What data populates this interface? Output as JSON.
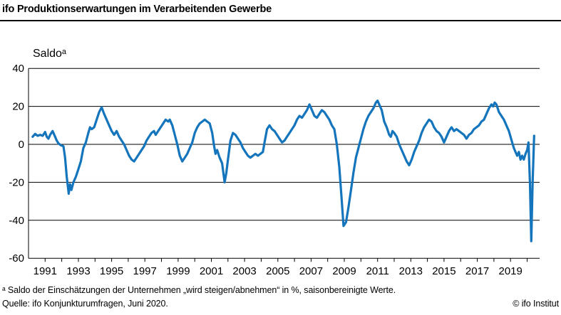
{
  "header": {
    "title": "ifo Produktionserwartungen im Verarbeitenden Gewerbe"
  },
  "footer": {
    "footnote": "ᵃ Saldo der Einschätzungen der Unternehmen „wird steigen/abnehmen“ in %, saisonbereinigte Werte.",
    "source": "Quelle: ifo Konjunkturumfragen, Juni 2020.",
    "copyright": "© ifo Institut"
  },
  "chart_data": {
    "type": "line",
    "title": "ifo Produktionserwartungen im Verarbeitenden Gewerbe",
    "ylabel": "Saldoᵃ",
    "xlabel": "",
    "unit": "Saldo in %, saisonbereinigt",
    "ylim": [
      -60,
      40
    ],
    "yticks": [
      40,
      20,
      0,
      -20,
      -40,
      -60
    ],
    "xlim": [
      1990.0,
      2020.75
    ],
    "xticks_labeled": [
      1991,
      1993,
      1995,
      1997,
      1999,
      2001,
      2003,
      2005,
      2007,
      2009,
      2011,
      2013,
      2015,
      2017,
      2019
    ],
    "xticks_minor_range": [
      1991,
      2020
    ],
    "grid": "horizontal",
    "legend_position": "none",
    "line_color": "#1575bc",
    "series": [
      {
        "name": "Produktionserwartungen",
        "color": "#1575bc",
        "points": [
          [
            1990.25,
            4
          ],
          [
            1990.4,
            5.5
          ],
          [
            1990.55,
            4.5
          ],
          [
            1990.7,
            5
          ],
          [
            1990.85,
            4.5
          ],
          [
            1991.0,
            6.5
          ],
          [
            1991.1,
            4
          ],
          [
            1991.2,
            3
          ],
          [
            1991.3,
            5
          ],
          [
            1991.45,
            7
          ],
          [
            1991.6,
            4
          ],
          [
            1991.7,
            2
          ],
          [
            1991.8,
            0.5
          ],
          [
            1991.95,
            -0.5
          ],
          [
            1992.1,
            -1
          ],
          [
            1992.2,
            -7
          ],
          [
            1992.3,
            -17
          ],
          [
            1992.42,
            -26
          ],
          [
            1992.5,
            -21
          ],
          [
            1992.58,
            -24
          ],
          [
            1992.7,
            -20
          ],
          [
            1992.85,
            -17
          ],
          [
            1993.0,
            -13
          ],
          [
            1993.15,
            -9
          ],
          [
            1993.3,
            -2
          ],
          [
            1993.45,
            1
          ],
          [
            1993.6,
            6
          ],
          [
            1993.7,
            9
          ],
          [
            1993.8,
            8
          ],
          [
            1993.95,
            9
          ],
          [
            1994.1,
            13
          ],
          [
            1994.25,
            17
          ],
          [
            1994.4,
            19.5
          ],
          [
            1994.55,
            16
          ],
          [
            1994.7,
            13
          ],
          [
            1994.85,
            10
          ],
          [
            1995.0,
            7
          ],
          [
            1995.15,
            5
          ],
          [
            1995.3,
            7
          ],
          [
            1995.45,
            4
          ],
          [
            1995.6,
            2
          ],
          [
            1995.75,
            0
          ],
          [
            1995.9,
            -3
          ],
          [
            1996.05,
            -6
          ],
          [
            1996.2,
            -8
          ],
          [
            1996.35,
            -9
          ],
          [
            1996.5,
            -7
          ],
          [
            1996.65,
            -5
          ],
          [
            1996.8,
            -3
          ],
          [
            1996.95,
            -1
          ],
          [
            1997.1,
            2
          ],
          [
            1997.25,
            4
          ],
          [
            1997.4,
            6
          ],
          [
            1997.55,
            7
          ],
          [
            1997.65,
            5
          ],
          [
            1997.8,
            7
          ],
          [
            1997.95,
            9
          ],
          [
            1998.1,
            11
          ],
          [
            1998.25,
            13
          ],
          [
            1998.4,
            12
          ],
          [
            1998.5,
            13
          ],
          [
            1998.65,
            10
          ],
          [
            1998.8,
            5
          ],
          [
            1998.95,
            0
          ],
          [
            1999.1,
            -6
          ],
          [
            1999.25,
            -9
          ],
          [
            1999.4,
            -7
          ],
          [
            1999.55,
            -5
          ],
          [
            1999.7,
            -2
          ],
          [
            1999.85,
            1
          ],
          [
            2000.0,
            6
          ],
          [
            2000.15,
            9
          ],
          [
            2000.3,
            11
          ],
          [
            2000.45,
            12
          ],
          [
            2000.6,
            13
          ],
          [
            2000.75,
            12
          ],
          [
            2000.9,
            11
          ],
          [
            2001.05,
            6
          ],
          [
            2001.15,
            0
          ],
          [
            2001.25,
            -5
          ],
          [
            2001.35,
            -3
          ],
          [
            2001.5,
            -7
          ],
          [
            2001.65,
            -10
          ],
          [
            2001.8,
            -20
          ],
          [
            2001.9,
            -15
          ],
          [
            2002.0,
            -8
          ],
          [
            2002.15,
            2
          ],
          [
            2002.3,
            6
          ],
          [
            2002.45,
            5
          ],
          [
            2002.6,
            3
          ],
          [
            2002.75,
            1
          ],
          [
            2002.9,
            -2
          ],
          [
            2003.05,
            -4
          ],
          [
            2003.2,
            -6
          ],
          [
            2003.35,
            -7
          ],
          [
            2003.5,
            -6
          ],
          [
            2003.65,
            -5
          ],
          [
            2003.8,
            -6
          ],
          [
            2003.95,
            -5
          ],
          [
            2004.1,
            -4
          ],
          [
            2004.2,
            1
          ],
          [
            2004.35,
            8
          ],
          [
            2004.5,
            10
          ],
          [
            2004.65,
            8
          ],
          [
            2004.8,
            7
          ],
          [
            2004.95,
            5
          ],
          [
            2005.1,
            3
          ],
          [
            2005.25,
            1
          ],
          [
            2005.4,
            2
          ],
          [
            2005.55,
            4
          ],
          [
            2005.7,
            6
          ],
          [
            2005.85,
            8
          ],
          [
            2006.0,
            10
          ],
          [
            2006.15,
            13
          ],
          [
            2006.3,
            15
          ],
          [
            2006.45,
            14
          ],
          [
            2006.6,
            16
          ],
          [
            2006.75,
            18
          ],
          [
            2006.9,
            21
          ],
          [
            2007.05,
            18
          ],
          [
            2007.2,
            15
          ],
          [
            2007.35,
            14
          ],
          [
            2007.5,
            16
          ],
          [
            2007.65,
            18
          ],
          [
            2007.8,
            17
          ],
          [
            2007.95,
            15
          ],
          [
            2008.1,
            13
          ],
          [
            2008.25,
            10
          ],
          [
            2008.4,
            8
          ],
          [
            2008.55,
            0
          ],
          [
            2008.7,
            -12
          ],
          [
            2008.85,
            -30
          ],
          [
            2008.95,
            -43
          ],
          [
            2009.1,
            -41
          ],
          [
            2009.25,
            -33
          ],
          [
            2009.4,
            -24
          ],
          [
            2009.55,
            -15
          ],
          [
            2009.7,
            -7
          ],
          [
            2009.85,
            -2
          ],
          [
            2010.0,
            3
          ],
          [
            2010.15,
            8
          ],
          [
            2010.3,
            12
          ],
          [
            2010.45,
            15
          ],
          [
            2010.6,
            17
          ],
          [
            2010.75,
            19
          ],
          [
            2010.9,
            22
          ],
          [
            2011.0,
            23
          ],
          [
            2011.1,
            21
          ],
          [
            2011.25,
            18
          ],
          [
            2011.4,
            12
          ],
          [
            2011.55,
            9
          ],
          [
            2011.7,
            5
          ],
          [
            2011.8,
            4
          ],
          [
            2011.9,
            7
          ],
          [
            2012.0,
            6
          ],
          [
            2012.15,
            4
          ],
          [
            2012.3,
            0
          ],
          [
            2012.45,
            -3
          ],
          [
            2012.6,
            -6
          ],
          [
            2012.75,
            -9
          ],
          [
            2012.9,
            -11
          ],
          [
            2013.05,
            -8
          ],
          [
            2013.2,
            -4
          ],
          [
            2013.35,
            -1
          ],
          [
            2013.5,
            2
          ],
          [
            2013.65,
            6
          ],
          [
            2013.8,
            9
          ],
          [
            2013.95,
            11
          ],
          [
            2014.1,
            13
          ],
          [
            2014.25,
            12
          ],
          [
            2014.4,
            9
          ],
          [
            2014.55,
            7
          ],
          [
            2014.7,
            6
          ],
          [
            2014.85,
            4
          ],
          [
            2015.0,
            1
          ],
          [
            2015.15,
            4
          ],
          [
            2015.3,
            7
          ],
          [
            2015.45,
            9
          ],
          [
            2015.6,
            7
          ],
          [
            2015.75,
            8
          ],
          [
            2015.9,
            7
          ],
          [
            2016.05,
            6
          ],
          [
            2016.2,
            5
          ],
          [
            2016.35,
            3
          ],
          [
            2016.5,
            5
          ],
          [
            2016.65,
            6
          ],
          [
            2016.8,
            8
          ],
          [
            2016.95,
            9
          ],
          [
            2017.1,
            10
          ],
          [
            2017.25,
            12
          ],
          [
            2017.4,
            13
          ],
          [
            2017.55,
            16
          ],
          [
            2017.7,
            19
          ],
          [
            2017.85,
            21
          ],
          [
            2017.95,
            20
          ],
          [
            2018.05,
            22
          ],
          [
            2018.15,
            21
          ],
          [
            2018.3,
            17
          ],
          [
            2018.45,
            15
          ],
          [
            2018.6,
            13
          ],
          [
            2018.75,
            10
          ],
          [
            2018.9,
            7
          ],
          [
            2019.0,
            4
          ],
          [
            2019.1,
            1
          ],
          [
            2019.2,
            -2
          ],
          [
            2019.3,
            -4
          ],
          [
            2019.4,
            -6
          ],
          [
            2019.5,
            -4
          ],
          [
            2019.6,
            -8
          ],
          [
            2019.7,
            -6
          ],
          [
            2019.8,
            -8
          ],
          [
            2019.9,
            -5
          ],
          [
            2020.0,
            -3
          ],
          [
            2020.08,
            1
          ],
          [
            2020.17,
            -21
          ],
          [
            2020.25,
            -51
          ],
          [
            2020.33,
            -20
          ],
          [
            2020.42,
            4.5
          ]
        ]
      }
    ]
  }
}
